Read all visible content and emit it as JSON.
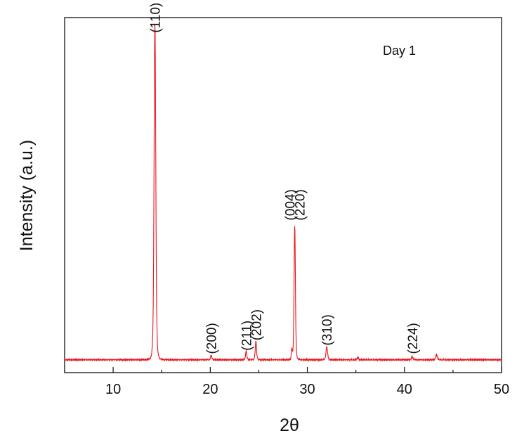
{
  "chart_data": {
    "type": "line",
    "xlabel": "2θ",
    "ylabel": "Intensity (a.u.)",
    "xlim": [
      5,
      50
    ],
    "ylim": [
      0,
      105
    ],
    "x_ticks": [
      10,
      20,
      30,
      40,
      50
    ],
    "y_ticks_shown": false,
    "grid": false,
    "annotation": "Day 1",
    "series": [
      {
        "color": "#e8141c",
        "baseline": 3.8,
        "peaks": [
          {
            "x": 14.3,
            "height": 100,
            "width": 0.13
          },
          {
            "x": 20.1,
            "height": 1.3,
            "width": 0.1
          },
          {
            "x": 23.7,
            "height": 2.5,
            "width": 0.1
          },
          {
            "x": 24.7,
            "height": 5.5,
            "width": 0.1
          },
          {
            "x": 28.4,
            "height": 3.0,
            "width": 0.08
          },
          {
            "x": 28.7,
            "height": 40,
            "width": 0.1
          },
          {
            "x": 32.0,
            "height": 3.8,
            "width": 0.12
          },
          {
            "x": 35.2,
            "height": 0.8,
            "width": 0.1
          },
          {
            "x": 40.8,
            "height": 0.9,
            "width": 0.12
          },
          {
            "x": 43.3,
            "height": 1.5,
            "width": 0.12
          }
        ]
      }
    ],
    "peak_labels": [
      {
        "text": "(110)",
        "x": 14.3,
        "y": 100.5
      },
      {
        "text": "(200)",
        "x": 20.1,
        "y": 5.5
      },
      {
        "text": "(211)",
        "x": 23.7,
        "y": 6.5
      },
      {
        "text": "(202)",
        "x": 24.7,
        "y": 9.5
      },
      {
        "text": "(004)",
        "x": 28.2,
        "y": 45
      },
      {
        "text": "(220)",
        "x": 29.2,
        "y": 45
      },
      {
        "text": "(310)",
        "x": 32.0,
        "y": 8
      },
      {
        "text": "(224)",
        "x": 40.8,
        "y": 5.5
      }
    ]
  }
}
